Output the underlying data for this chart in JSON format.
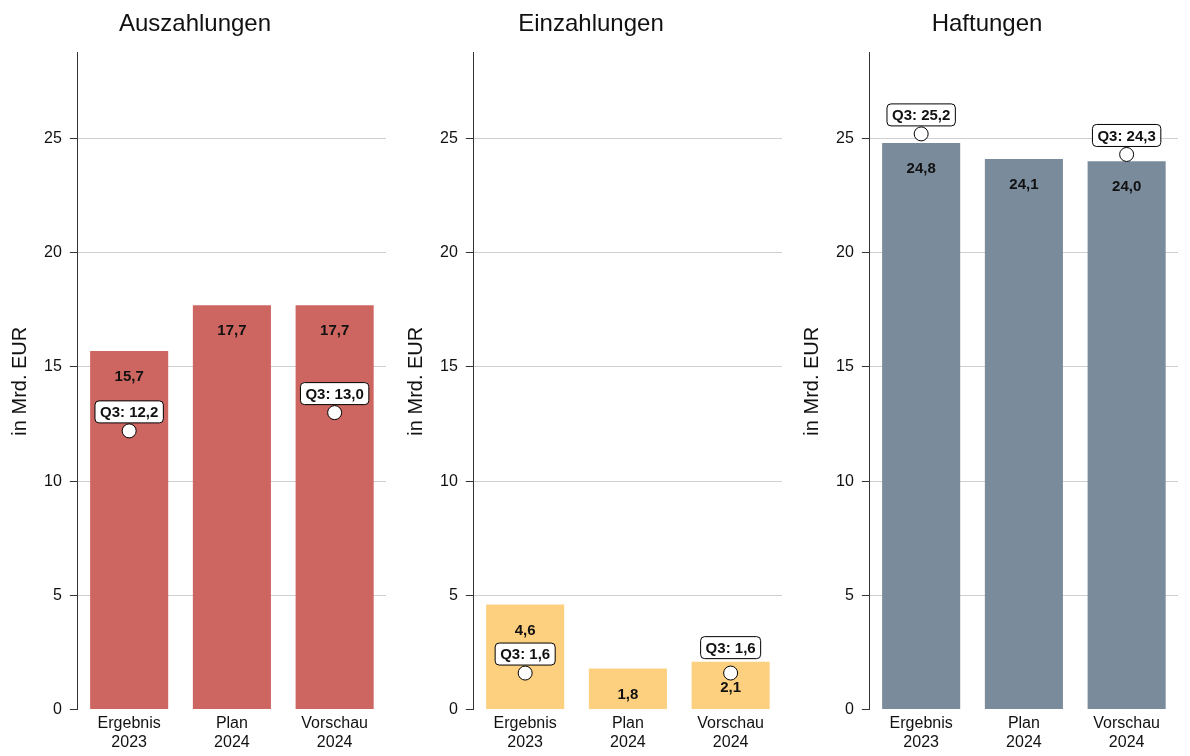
{
  "chart_data": [
    {
      "type": "bar",
      "title": "Auszahlungen",
      "ylabel": "in Mrd. EUR",
      "categories": [
        "Ergebnis 2023",
        "Plan 2024",
        "Vorschau 2024"
      ],
      "ylim": [
        0,
        28.75
      ],
      "yticks": [
        0,
        5,
        10,
        15,
        20,
        25
      ],
      "grid": "y",
      "series": [
        {
          "color": "#cd6660",
          "values": [
            15.7,
            17.7,
            17.7
          ],
          "value_labels": [
            "15,7",
            "17,7",
            "17,7"
          ]
        },
        {
          "type": "scatter",
          "marker": "circle",
          "color": "#ffffff",
          "x": [
            "Ergebnis 2023",
            "Vorschau 2024"
          ],
          "values": [
            12.2,
            13.0
          ],
          "value_labels": [
            "Q3: 12,2",
            "Q3: 13,0"
          ]
        }
      ]
    },
    {
      "type": "bar",
      "title": "Einzahlungen",
      "ylabel": "in Mrd. EUR",
      "categories": [
        "Ergebnis 2023",
        "Plan 2024",
        "Vorschau 2024"
      ],
      "ylim": [
        0,
        28.75
      ],
      "yticks": [
        0,
        5,
        10,
        15,
        20,
        25
      ],
      "grid": "y",
      "series": [
        {
          "color": "#fdd07f",
          "values": [
            4.6,
            1.8,
            2.1
          ],
          "value_labels": [
            "4,6",
            "1,8",
            "2,1"
          ]
        },
        {
          "type": "scatter",
          "marker": "circle",
          "color": "#ffffff",
          "x": [
            "Ergebnis 2023",
            "Vorschau 2024"
          ],
          "values": [
            1.6,
            1.6
          ],
          "value_labels": [
            "Q3: 1,6",
            "Q3: 1,6"
          ]
        }
      ]
    },
    {
      "type": "bar",
      "title": "Haftungen",
      "ylabel": "in Mrd. EUR",
      "categories": [
        "Ergebnis 2023",
        "Plan 2024",
        "Vorschau 2024"
      ],
      "ylim": [
        0,
        28.75
      ],
      "yticks": [
        0,
        5,
        10,
        15,
        20,
        25
      ],
      "grid": "y",
      "series": [
        {
          "color": "#7a8b9c",
          "values": [
            24.8,
            24.1,
            24.0
          ],
          "value_labels": [
            "24,8",
            "24,1",
            "24,0"
          ]
        },
        {
          "type": "scatter",
          "marker": "circle",
          "color": "#ffffff",
          "x": [
            "Ergebnis 2023",
            "Vorschau 2024"
          ],
          "values": [
            25.2,
            24.3
          ],
          "value_labels": [
            "Q3: 25,2",
            "Q3: 24,3"
          ]
        }
      ]
    }
  ]
}
